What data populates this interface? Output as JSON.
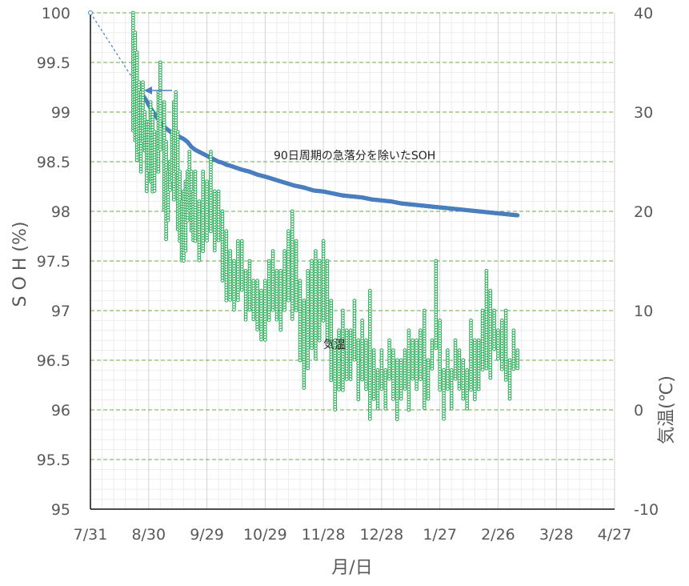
{
  "chart_data": {
    "type": "scatter",
    "title": "",
    "xlabel": "月/日",
    "ylabel": "S O H (%)",
    "y2label": "気温(℃)",
    "x_tick_labels": [
      "7/31",
      "8/30",
      "9/29",
      "10/29",
      "11/28",
      "12/28",
      "1/27",
      "2/26",
      "3/28",
      "4/27"
    ],
    "x_unit": "days since 7/31",
    "xlim": [
      0,
      270
    ],
    "ylim": [
      95,
      100
    ],
    "y_ticks": [
      "95",
      "95.5",
      "96",
      "96.5",
      "97",
      "97.5",
      "98",
      "98.5",
      "99",
      "99.5",
      "100"
    ],
    "y2lim": [
      -10,
      40
    ],
    "y2_ticks": [
      "-10",
      "0",
      "10",
      "20",
      "30",
      "40"
    ],
    "grid": true,
    "annotations": [
      {
        "text": "90日周期の急落分を除いたSOH"
      },
      {
        "text": "気温"
      }
    ],
    "series": [
      {
        "name": "90日周期の急落分を除いたSOH",
        "axis": "left",
        "color": "#4a7ebf",
        "x": [
          0,
          26,
          27,
          28,
          29,
          30,
          31,
          32,
          33,
          34,
          36,
          38,
          40,
          42,
          44,
          46,
          48,
          50,
          52,
          54,
          56,
          58,
          60,
          62,
          64,
          66,
          68,
          70,
          72,
          75,
          78,
          82,
          86,
          90,
          95,
          100,
          105,
          110,
          115,
          120,
          125,
          130,
          135,
          140,
          145,
          150,
          155,
          160,
          165,
          170,
          175,
          180,
          185,
          190,
          195,
          200,
          205,
          210,
          215,
          220
        ],
        "y": [
          100,
          99.21,
          99.17,
          99.14,
          99.11,
          99.07,
          99.04,
          99.01,
          98.98,
          98.95,
          98.9,
          98.85,
          98.82,
          98.79,
          98.77,
          98.75,
          98.73,
          98.7,
          98.65,
          98.62,
          98.6,
          98.58,
          98.56,
          98.54,
          98.52,
          98.5,
          98.49,
          98.47,
          98.46,
          98.44,
          98.42,
          98.4,
          98.37,
          98.35,
          98.32,
          98.29,
          98.26,
          98.24,
          98.21,
          98.2,
          98.18,
          98.16,
          98.15,
          98.14,
          98.12,
          98.11,
          98.1,
          98.08,
          98.07,
          98.06,
          98.05,
          98.04,
          98.03,
          98.02,
          98.01,
          98.0,
          97.99,
          97.98,
          97.97,
          97.96
        ]
      },
      {
        "name": "気温",
        "axis": "right",
        "color": "#1aa84a",
        "x": [
          22,
          23,
          24,
          25,
          26,
          27,
          28,
          29,
          30,
          31,
          32,
          33,
          35,
          36,
          38,
          39,
          40,
          41,
          42,
          43,
          44,
          45,
          46,
          47,
          48,
          49,
          50,
          51,
          52,
          53,
          54,
          56,
          58,
          60,
          62,
          64,
          66,
          68,
          70,
          72,
          74,
          76,
          78,
          80,
          82,
          84,
          86,
          88,
          90,
          92,
          94,
          96,
          98,
          100,
          102,
          104,
          106,
          108,
          110,
          112,
          114,
          116,
          118,
          120,
          122,
          124,
          126,
          128,
          130,
          132,
          134,
          136,
          138,
          140,
          142,
          144,
          146,
          148,
          150,
          152,
          154,
          156,
          158,
          160,
          162,
          164,
          166,
          168,
          170,
          172,
          174,
          176,
          178,
          180,
          182,
          184,
          186,
          188,
          190,
          192,
          194,
          196,
          198,
          200,
          202,
          204,
          206,
          208,
          210,
          212,
          214,
          216,
          218,
          220
        ],
        "low": [
          28,
          27,
          25,
          26,
          24,
          27,
          26,
          22,
          24,
          23,
          22,
          22,
          24,
          26,
          20,
          17,
          19,
          22,
          23,
          21,
          24,
          18,
          17,
          15,
          15,
          16,
          19,
          20,
          18,
          17,
          17,
          15,
          16,
          17,
          18,
          16,
          17,
          13,
          11,
          11,
          10,
          11,
          12,
          9,
          10,
          9,
          8,
          7,
          7,
          9,
          10,
          9,
          8,
          10,
          11,
          9,
          10,
          5,
          2,
          4,
          6,
          5,
          7,
          9,
          7,
          3,
          0,
          2,
          2,
          3,
          3,
          5,
          1,
          3,
          2,
          -1,
          1,
          0,
          2,
          0,
          3,
          1,
          -1,
          1,
          2,
          0,
          3,
          2,
          3,
          0,
          1,
          4,
          6,
          2,
          -1,
          2,
          0,
          3,
          2,
          1,
          0,
          2,
          1,
          2,
          4,
          4,
          3,
          6,
          5,
          4,
          3,
          1,
          4,
          4
        ],
        "high": [
          40,
          38,
          36,
          33,
          32,
          33,
          30,
          29,
          29,
          31,
          30,
          28,
          32,
          35,
          31,
          27,
          24,
          25,
          28,
          31,
          32,
          28,
          24,
          21,
          22,
          23,
          24,
          26,
          24,
          22,
          24,
          21,
          24,
          23,
          26,
          22,
          22,
          20,
          18,
          16,
          15,
          17,
          17,
          14,
          15,
          13,
          13,
          12,
          13,
          15,
          16,
          14,
          14,
          16,
          18,
          20,
          17,
          13,
          11,
          14,
          15,
          16,
          15,
          17,
          15,
          11,
          7,
          8,
          10,
          8,
          8,
          11,
          7,
          9,
          7,
          12,
          6,
          4,
          6,
          4,
          7,
          6,
          5,
          5,
          6,
          8,
          7,
          7,
          8,
          10,
          5,
          7,
          15,
          9,
          4,
          6,
          4,
          7,
          6,
          5,
          4,
          9,
          7,
          7,
          10,
          14,
          12,
          10,
          8,
          9,
          10,
          5,
          8,
          6
        ]
      }
    ]
  }
}
